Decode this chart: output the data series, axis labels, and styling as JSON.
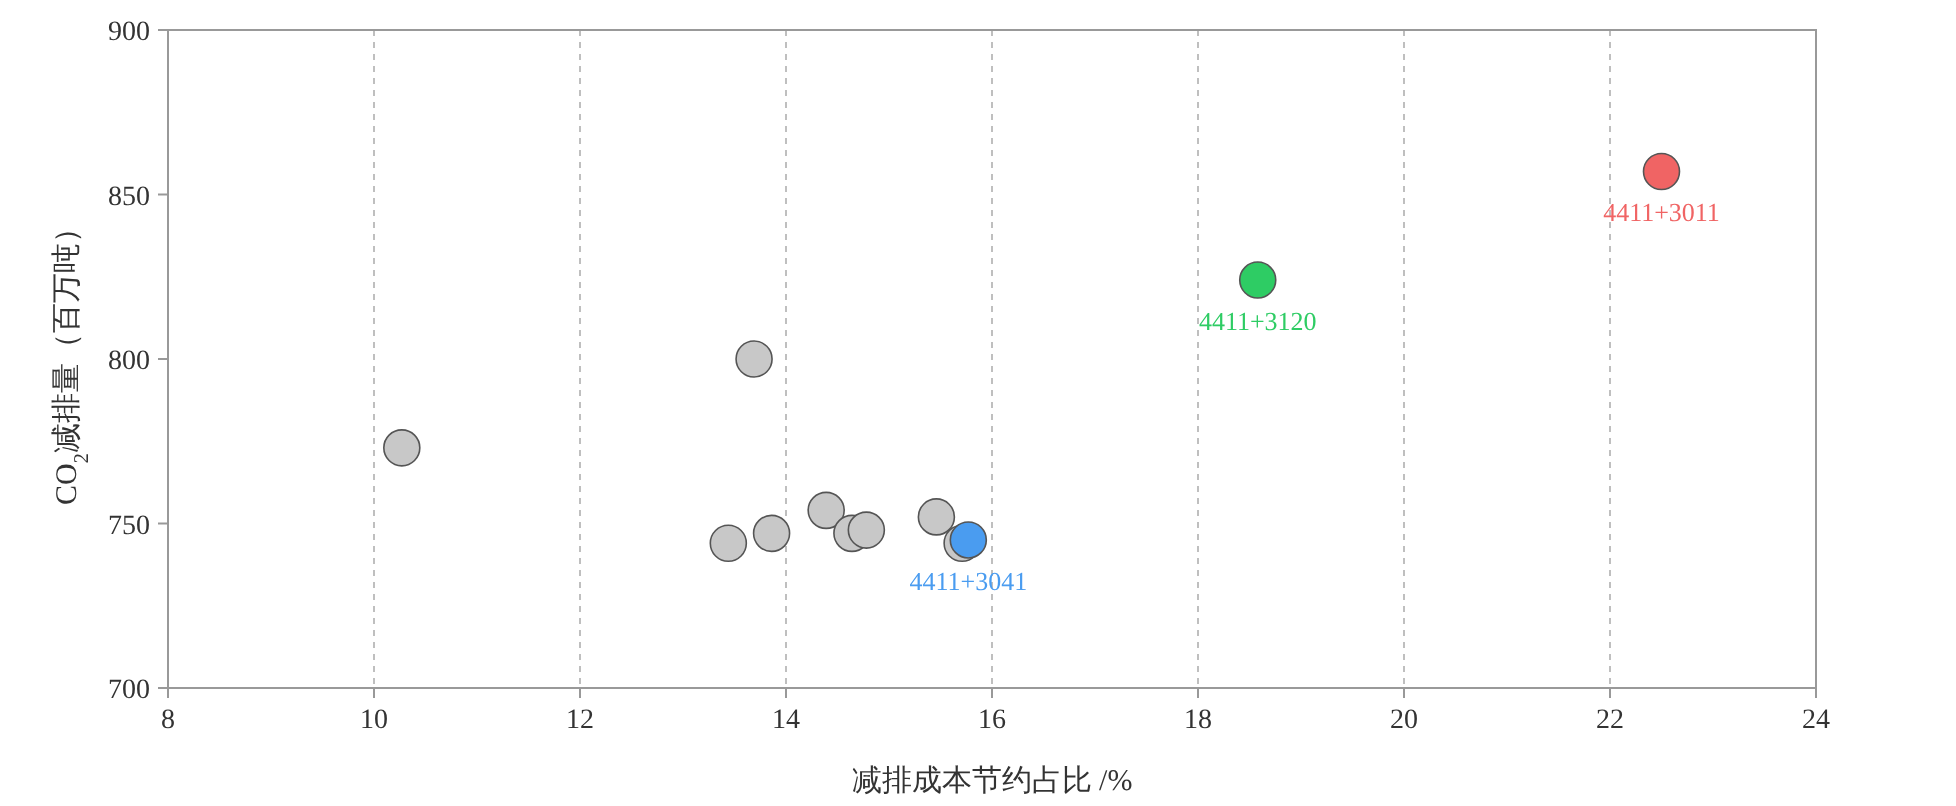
{
  "chart_data": {
    "type": "scatter",
    "xlabel": "减排成本节约占比 /%",
    "ylabel": "CO$_{2}$减排量（百万吨）",
    "xlim": [
      8,
      24
    ],
    "xticks": [
      8,
      10,
      12,
      14,
      16,
      18,
      20,
      22,
      24
    ],
    "ylim": [
      700,
      900
    ],
    "yticks": [
      700,
      750,
      800,
      850,
      900
    ],
    "grid": "x",
    "marker": "circle",
    "series": [
      {
        "color": "#c8c8c8",
        "x": [
          10.27,
          13.69,
          13.44,
          13.86,
          14.39,
          14.64,
          14.78,
          15.46,
          15.71
        ],
        "values": [
          773,
          800,
          744,
          747,
          754,
          747,
          748,
          752,
          744
        ]
      },
      {
        "name": "4411+3041",
        "color": "#4a9cf0",
        "x": [
          15.77
        ],
        "values": [
          745
        ]
      },
      {
        "name": "4411+3120",
        "color": "#2ecc64",
        "x": [
          18.58
        ],
        "values": [
          824
        ]
      },
      {
        "name": "4411+3011",
        "color": "#f06464",
        "x": [
          22.5
        ],
        "values": [
          857
        ]
      }
    ]
  }
}
